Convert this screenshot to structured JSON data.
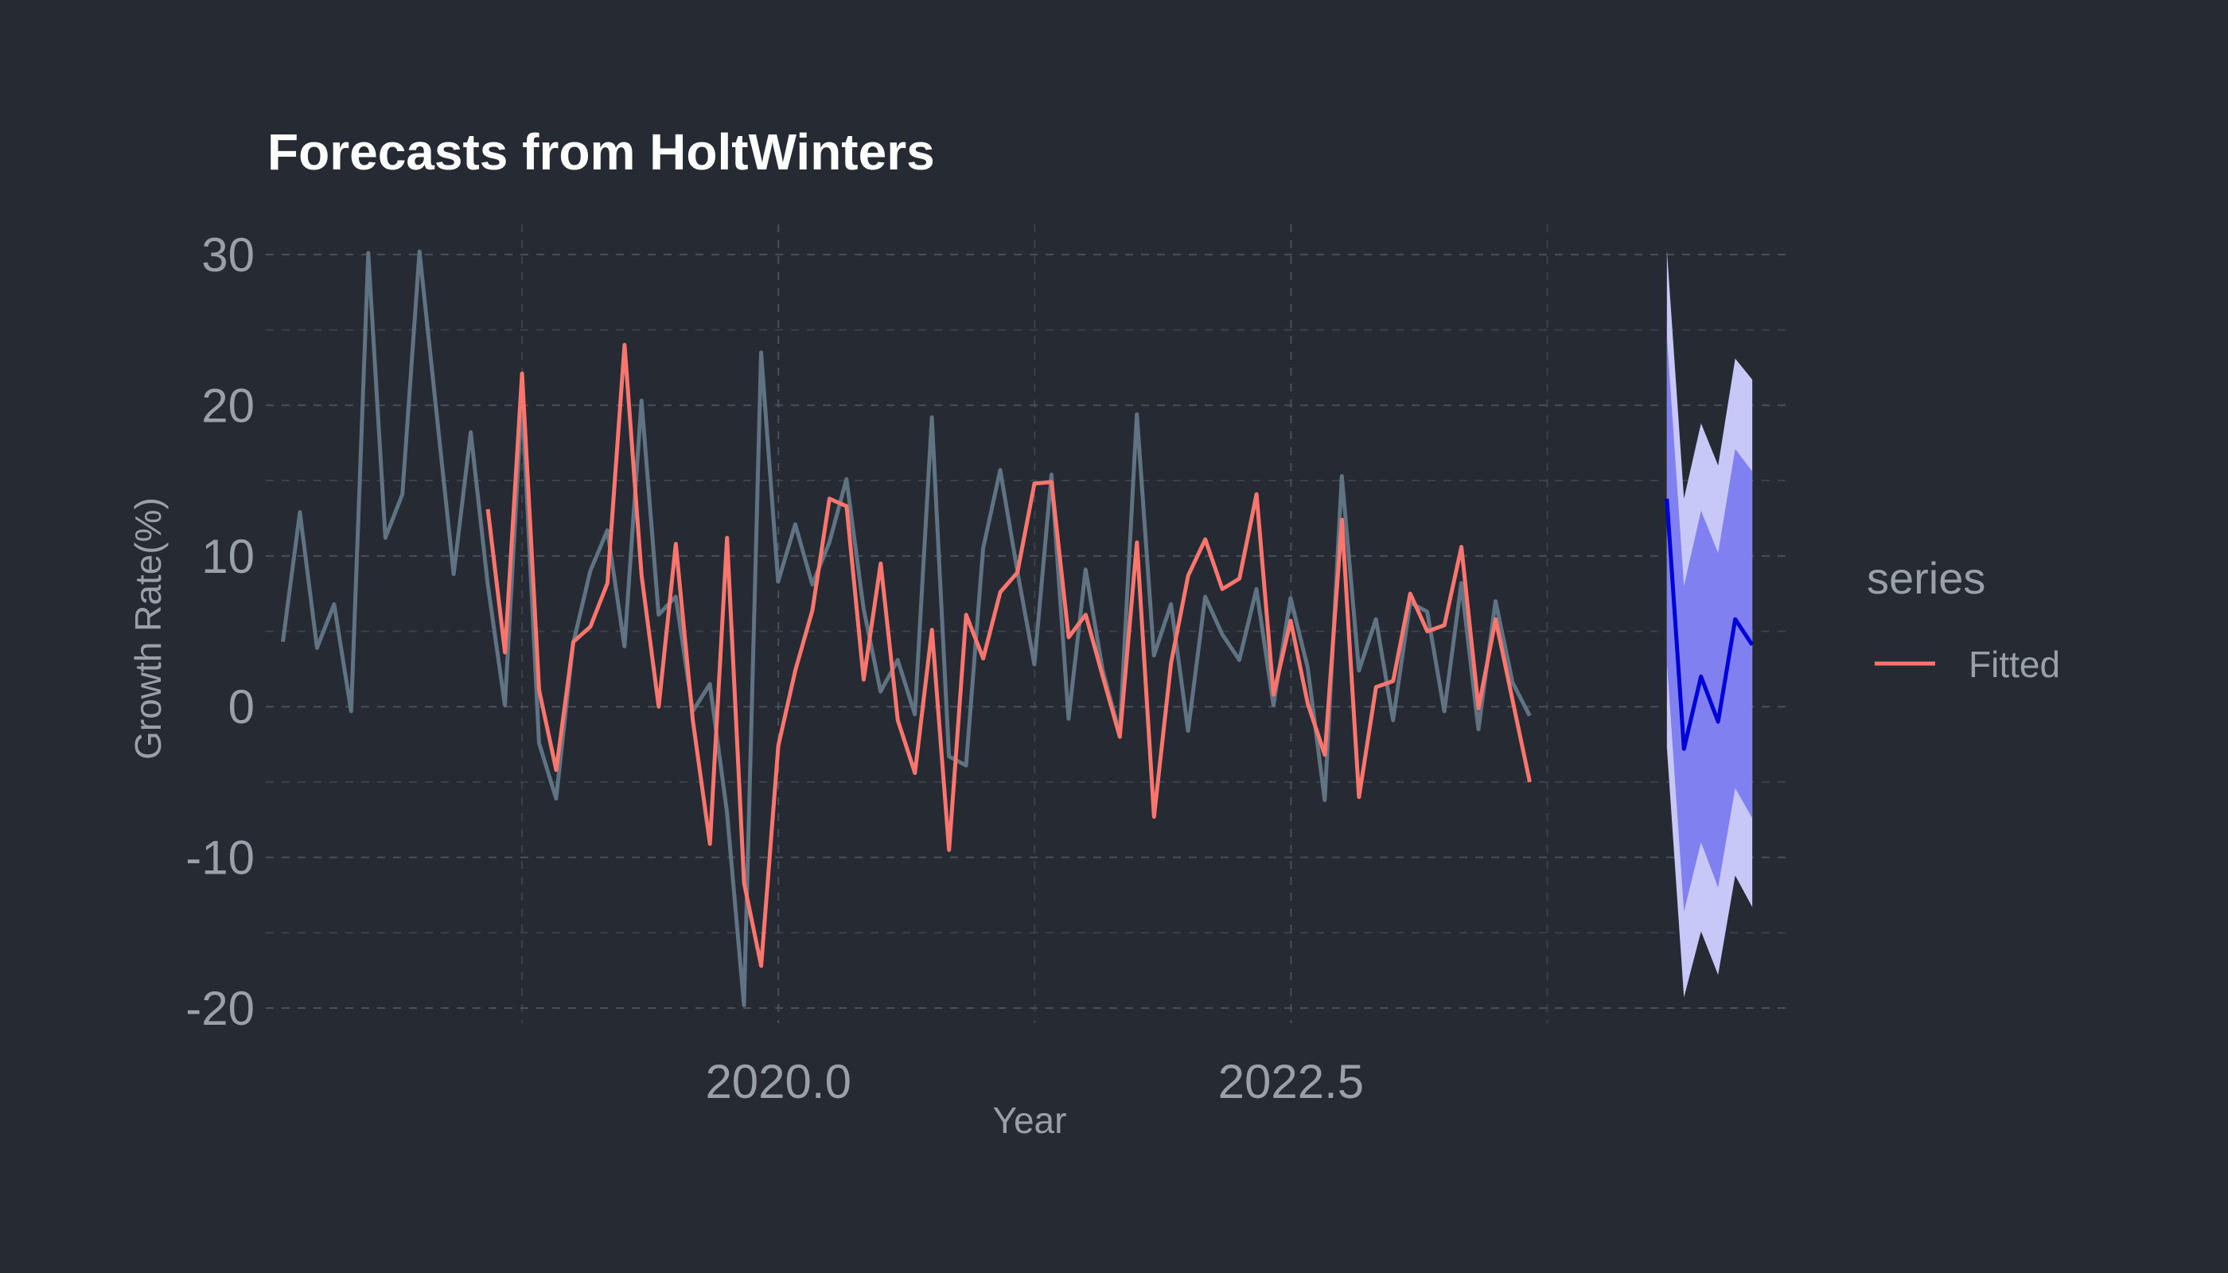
{
  "chart_data": {
    "type": "line",
    "title": "Forecasts from HoltWinters",
    "xlabel": "Year",
    "ylabel": "Growth Rate(%)",
    "xlim": [
      2017.5,
      2024.92
    ],
    "ylim": [
      -21,
      32
    ],
    "x_ticks": [
      2020.0,
      2022.5
    ],
    "x_tick_labels": [
      "2020.0",
      "2022.5"
    ],
    "y_ticks": [
      -20,
      -10,
      0,
      10,
      20,
      30
    ],
    "y_tick_labels": [
      "-20",
      "-10",
      "0",
      "10",
      "20",
      "30"
    ],
    "grid": true,
    "legend": {
      "title": "series",
      "placement": "right",
      "entries": [
        {
          "label": "Fitted",
          "color": "#f8766d"
        }
      ]
    },
    "colors": {
      "background": "#252a33",
      "actual": "#5f7382",
      "fitted": "#f8766d",
      "forecast": "#0000d8",
      "pi80": "#8080f0",
      "pi95": "#c8c8f8"
    },
    "series": [
      {
        "role": "actual",
        "x_start": 2017.5833,
        "x_step": 0.0833,
        "values": [
          4.3,
          12.9,
          3.9,
          6.8,
          -0.3,
          30.1,
          11.2,
          14.1,
          30.2,
          19.5,
          8.8,
          18.2,
          8.1,
          0.1,
          20.5,
          -2.4,
          -6.1,
          4.2,
          9.0,
          11.7,
          4.0,
          20.3,
          6.1,
          7.3,
          -0.3,
          1.5,
          -7.0,
          -19.8,
          23.5,
          8.3,
          12.1,
          8.1,
          10.9,
          15.1,
          6.5,
          1.0,
          3.1,
          -0.5,
          19.2,
          -3.3,
          -3.9,
          10.5,
          15.7,
          9.0,
          2.8,
          15.4,
          -0.8,
          9.1,
          2.4,
          -1.8,
          19.4,
          3.4,
          6.8,
          -1.6,
          7.3,
          4.8,
          3.1,
          7.8,
          0.1,
          7.2,
          2.6,
          -6.2,
          15.3,
          2.4,
          5.8,
          -0.9,
          6.9,
          6.3,
          -0.3,
          8.2,
          -1.5,
          7.0,
          1.6,
          -0.6
        ]
      },
      {
        "role": "fitted",
        "name": "Fitted",
        "x_start": 2018.5833,
        "x_step": 0.0833,
        "values": [
          13.1,
          3.6,
          22.1,
          1.1,
          -4.2,
          4.3,
          5.3,
          8.2,
          24.0,
          8.7,
          0.0,
          10.8,
          -0.9,
          -9.1,
          11.2,
          -11.7,
          -17.2,
          -2.6,
          2.4,
          6.4,
          13.8,
          13.3,
          1.8,
          9.5,
          -0.9,
          -4.4,
          5.1,
          -9.5,
          6.1,
          3.2,
          7.6,
          8.9,
          14.8,
          14.9,
          4.6,
          6.1,
          2.0,
          -2.0,
          10.9,
          -7.3,
          2.9,
          8.7,
          11.1,
          7.8,
          8.5,
          14.1,
          0.8,
          5.7,
          0.2,
          -3.2,
          12.4,
          -6.0,
          1.3,
          1.7,
          7.5,
          5.0,
          5.4,
          10.6,
          -0.1,
          5.8,
          0.4,
          -5.0
        ]
      }
    ],
    "forecast": {
      "x_start": 2024.3333,
      "x_step": 0.0833,
      "point": [
        13.8,
        -2.8,
        2.0,
        -1.0,
        5.8,
        4.1
      ],
      "lo80": [
        3.0,
        -13.6,
        -9.0,
        -12.0,
        -5.4,
        -7.4
      ],
      "hi80": [
        24.6,
        8.0,
        13.0,
        10.2,
        17.1,
        15.6
      ],
      "lo95": [
        -2.7,
        -19.3,
        -14.9,
        -17.8,
        -11.2,
        -13.3
      ],
      "hi95": [
        30.3,
        13.8,
        18.8,
        16.0,
        23.1,
        21.7
      ]
    }
  }
}
